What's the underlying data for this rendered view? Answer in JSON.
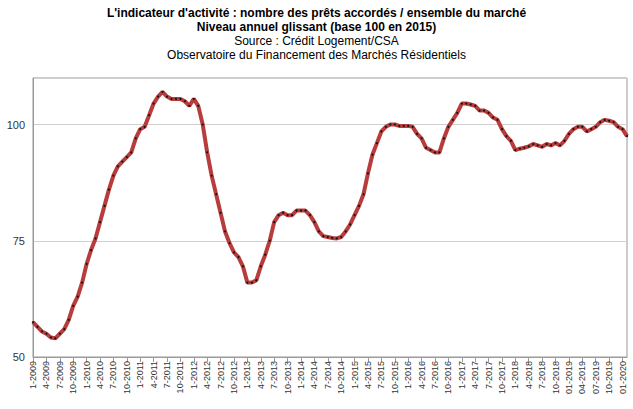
{
  "chart_data": {
    "type": "line",
    "title": "L'indicateur d'activité : nombre des prêts accordés / ensemble du marché",
    "subtitle": "Niveau annuel glissant (base 100 en 2015)",
    "source": [
      "Source : Crédit Logement/CSA",
      "Observatoire du Financement des Marchés Résidentiels"
    ],
    "categories": [
      "1-2009",
      null,
      null,
      "4-2009",
      null,
      null,
      "7-2009",
      null,
      null,
      "10-2009",
      null,
      null,
      "1-2010",
      null,
      null,
      "4-2010",
      null,
      null,
      "7-2010",
      null,
      null,
      "10-2010",
      null,
      null,
      "1-2011",
      null,
      null,
      "4-2011",
      null,
      null,
      "7-2011",
      null,
      null,
      "10-2011",
      null,
      null,
      "1-2012",
      null,
      null,
      "4-2012",
      null,
      null,
      "7-2012",
      null,
      null,
      "10-2012",
      null,
      null,
      "1-2013",
      null,
      null,
      "4-2013",
      null,
      null,
      "7-2013",
      null,
      null,
      "10-2013",
      null,
      null,
      "1-2014",
      null,
      null,
      "4-2014",
      null,
      null,
      "7-2014",
      null,
      null,
      "10-2014",
      null,
      null,
      "1-2015",
      null,
      null,
      "4-2015",
      null,
      null,
      "7-2015",
      null,
      null,
      "10-2015",
      null,
      null,
      "1-2016",
      null,
      null,
      "4-2016",
      null,
      null,
      "7-2016",
      null,
      null,
      "10-2016",
      null,
      null,
      "1-2017",
      null,
      null,
      "4-2017",
      null,
      null,
      "7-2017",
      null,
      null,
      "10-2017",
      null,
      null,
      "1-2018",
      null,
      null,
      "4-2018",
      null,
      null,
      "7-2018",
      null,
      null,
      "10-2018",
      null,
      null,
      "01-2019",
      null,
      null,
      "04-2019",
      null,
      null,
      "07-2019",
      null,
      null,
      "10-2019",
      null,
      null,
      "01-2020",
      null
    ],
    "values": [
      57.5,
      56.5,
      55.5,
      55,
      54.2,
      54,
      55,
      56,
      58,
      61,
      63,
      66,
      70,
      73,
      75.5,
      79,
      82.5,
      86,
      89,
      91,
      92,
      93,
      94,
      97,
      99,
      99.5,
      102,
      104.5,
      106,
      107,
      106,
      105.5,
      105.5,
      105.5,
      105,
      104,
      105.5,
      104,
      100,
      94,
      89,
      85,
      81,
      77,
      74.5,
      72.5,
      71.5,
      69.5,
      66,
      66,
      66.5,
      69.5,
      72,
      75,
      79,
      80.5,
      81,
      80.5,
      80.5,
      81.5,
      81.5,
      81.5,
      80.5,
      79,
      77,
      76,
      75.8,
      75.6,
      75.5,
      75.8,
      77,
      78.5,
      80.5,
      82.5,
      85,
      89.5,
      93.5,
      96,
      98.5,
      99.5,
      100,
      100,
      99.7,
      99.7,
      99.7,
      99.5,
      98,
      97,
      95,
      94.5,
      94,
      94,
      97,
      99.5,
      101,
      102.5,
      104.5,
      104.5,
      104.3,
      104,
      103,
      103,
      102.5,
      101.5,
      101,
      99,
      97.5,
      96.5,
      94.5,
      94.8,
      95,
      95.3,
      95.8,
      95.5,
      95.2,
      95.8,
      95.5,
      96,
      95.5,
      96.5,
      98,
      99,
      99.5,
      99.5,
      98.5,
      99,
      99.5,
      100.5,
      101,
      100.8,
      100.5,
      99.5,
      99,
      97.5
    ],
    "color": "#b83c3c",
    "marker": "circle",
    "ylim": [
      50,
      110
    ],
    "yticks": [
      50,
      75,
      100
    ],
    "grid": true
  }
}
